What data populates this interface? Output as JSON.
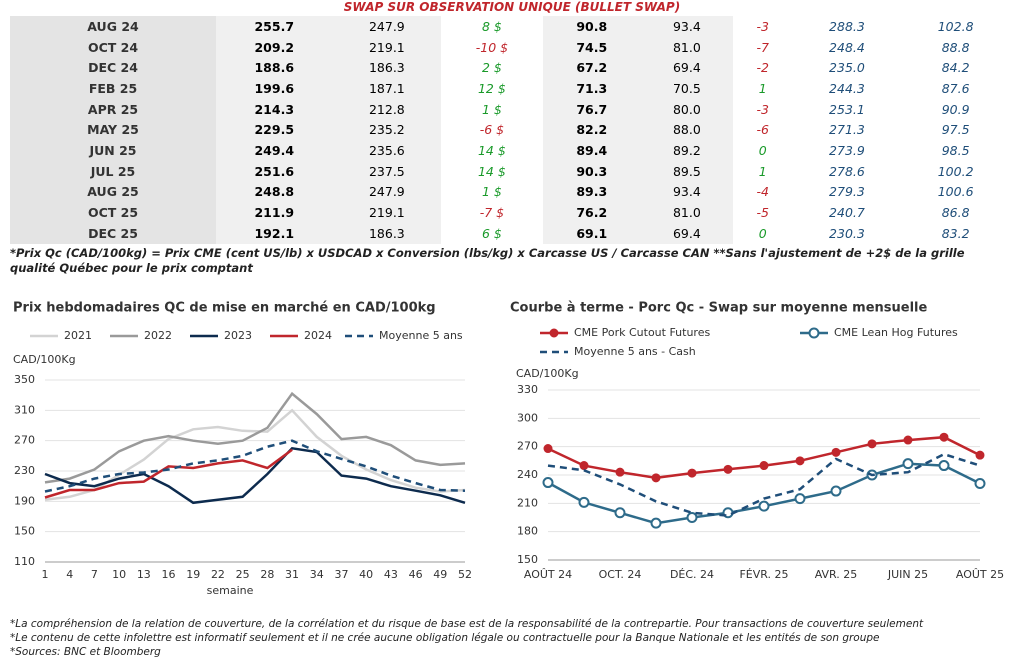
{
  "header": {
    "title": "SWAP SUR OBSERVATION UNIQUE (BULLET SWAP)"
  },
  "table": {
    "rows": [
      [
        "AUG 24",
        "255.7",
        "247.9",
        "8 $",
        "90.8",
        "93.4",
        "-3",
        "288.3",
        "102.8"
      ],
      [
        "OCT 24",
        "209.2",
        "219.1",
        "-10 $",
        "74.5",
        "81.0",
        "-7",
        "248.4",
        "88.8"
      ],
      [
        "DEC 24",
        "188.6",
        "186.3",
        "2 $",
        "67.2",
        "69.4",
        "-2",
        "235.0",
        "84.2"
      ],
      [
        "FEB 25",
        "199.6",
        "187.1",
        "12 $",
        "71.3",
        "70.5",
        "1",
        "244.3",
        "87.6"
      ],
      [
        "APR 25",
        "214.3",
        "212.8",
        "1 $",
        "76.7",
        "80.0",
        "-3",
        "253.1",
        "90.9"
      ],
      [
        "MAY 25",
        "229.5",
        "235.2",
        "-6 $",
        "82.2",
        "88.0",
        "-6",
        "271.3",
        "97.5"
      ],
      [
        "JUN 25",
        "249.4",
        "235.6",
        "14 $",
        "89.4",
        "89.2",
        "0",
        "273.9",
        "98.5"
      ],
      [
        "JUL 25",
        "251.6",
        "237.5",
        "14 $",
        "90.3",
        "89.5",
        "1",
        "278.6",
        "100.2"
      ],
      [
        "AUG 25",
        "248.8",
        "247.9",
        "1 $",
        "89.3",
        "93.4",
        "-4",
        "279.3",
        "100.6"
      ],
      [
        "OCT 25",
        "211.9",
        "219.1",
        "-7 $",
        "76.2",
        "81.0",
        "-5",
        "240.7",
        "86.8"
      ],
      [
        "DEC 25",
        "192.1",
        "186.3",
        "6 $",
        "69.1",
        "69.4",
        "0",
        "230.3",
        "83.2"
      ]
    ]
  },
  "note": "*Prix Qc (CAD/100kg) = Prix CME (cent US/lb) x USDCAD x Conversion (lbs/kg) x Carcasse US / Carcasse CAN **Sans l'ajustement de +2$ de la grille qualité Québec pour le prix comptant",
  "chart_data": [
    {
      "type": "line",
      "title": "Prix hebdomadaires QC de mise en marché en CAD/100kg",
      "ylabel": "CAD/100Kg",
      "xlabel": "semaine",
      "x": [
        1,
        4,
        7,
        10,
        13,
        16,
        19,
        22,
        25,
        28,
        31,
        34,
        37,
        40,
        43,
        46,
        49,
        52
      ],
      "xlim": [
        1,
        52
      ],
      "xticks": [
        1,
        4,
        7,
        10,
        13,
        16,
        19,
        22,
        25,
        28,
        31,
        34,
        37,
        40,
        43,
        46,
        49,
        52
      ],
      "ylim": [
        110,
        350
      ],
      "yticks": [
        110,
        150,
        190,
        230,
        270,
        310,
        350
      ],
      "grid": true,
      "series": [
        {
          "name": "2021",
          "color": "#d3d3d3",
          "values": [
            192,
            196,
            205,
            225,
            245,
            272,
            285,
            288,
            283,
            282,
            310,
            275,
            250,
            232,
            218,
            208,
            203,
            205
          ]
        },
        {
          "name": "2022",
          "color": "#9a9a9a",
          "values": [
            215,
            220,
            232,
            256,
            270,
            276,
            270,
            266,
            270,
            287,
            332,
            305,
            272,
            275,
            264,
            244,
            238,
            240
          ]
        },
        {
          "name": "2023",
          "color": "#0d2b4e",
          "values": [
            226,
            214,
            210,
            220,
            226,
            210,
            188,
            192,
            196,
            226,
            260,
            255,
            224,
            220,
            210,
            204,
            198,
            188
          ]
        },
        {
          "name": "2024",
          "color": "#c0262c",
          "values": [
            195,
            205,
            205,
            214,
            216,
            236,
            234,
            240,
            244,
            234,
            258,
            null,
            null,
            null,
            null,
            null,
            null,
            null
          ]
        },
        {
          "name": "Moyenne 5 ans",
          "color": "#1f4e79",
          "dash": true,
          "values": [
            203,
            210,
            220,
            226,
            228,
            232,
            240,
            244,
            250,
            262,
            270,
            256,
            246,
            236,
            224,
            214,
            205,
            204
          ]
        }
      ]
    },
    {
      "type": "line",
      "title": "Courbe à terme - Porc Qc - Swap sur moyenne mensuelle",
      "ylabel": "CAD/100Kg",
      "categories": [
        "AOÛT 24",
        null,
        "OCT. 24",
        null,
        "DÉC. 24",
        null,
        "FÉVR. 25",
        null,
        "AVR. 25",
        null,
        "JUIN 25",
        null,
        "AOÛT 25"
      ],
      "ylim": [
        150,
        330
      ],
      "yticks": [
        150,
        180,
        210,
        240,
        270,
        300,
        330
      ],
      "grid": true,
      "series": [
        {
          "name": "CME Pork Cutout Futures",
          "color": "#c0262c",
          "marker": "filled",
          "values": [
            268,
            250,
            243,
            237,
            242,
            246,
            250,
            255,
            264,
            273,
            277,
            280,
            261
          ]
        },
        {
          "name": "CME Lean Hog Futures",
          "color": "#2e6b8a",
          "marker": "open",
          "values": [
            232,
            211,
            200,
            189,
            195,
            200,
            207,
            215,
            223,
            240,
            252,
            250,
            231
          ]
        },
        {
          "name": "Moyenne 5 ans - Cash",
          "color": "#1f4e79",
          "dash": true,
          "values": [
            250,
            245,
            230,
            212,
            200,
            197,
            215,
            225,
            257,
            240,
            243,
            262,
            250
          ]
        }
      ]
    }
  ],
  "footnotes": [
    "*La compréhension de la relation de couverture, de la corrélation et du risque de base est de la responsabilité de la contrepartie. Pour transactions de couverture seulement",
    "*Le contenu de cette infolettre est informatif seulement et il ne crée aucune obligation légale ou contractuelle pour la Banque Nationale et les entités de son groupe",
    "*Sources: BNC et Bloomberg"
  ]
}
